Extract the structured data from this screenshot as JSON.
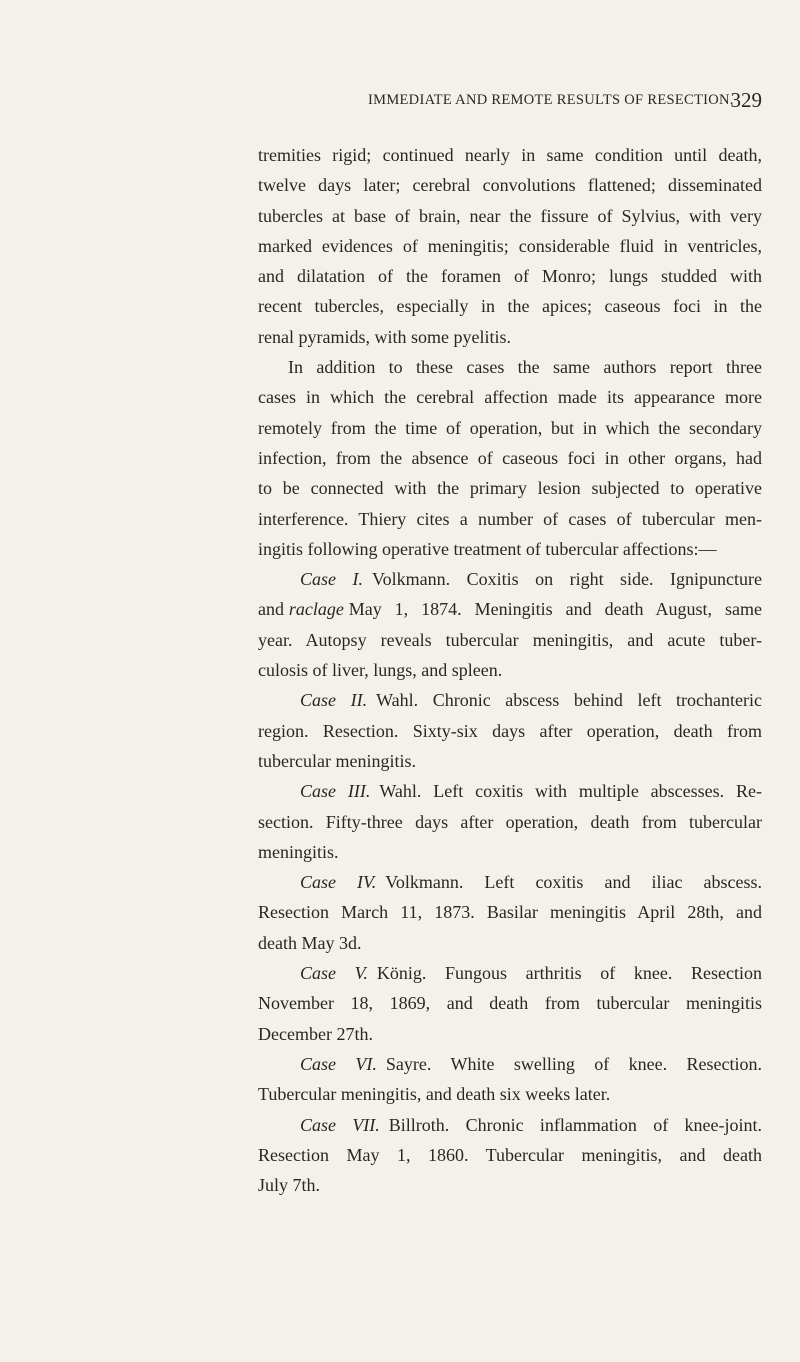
{
  "header": {
    "title": "IMMEDIATE AND REMOTE RESULTS OF RESECTION.",
    "page_number": "329"
  },
  "paragraphs": [
    {
      "lines": [
        "tremities rigid; continued nearly in same condition until death,",
        "twelve days later; cerebral convolutions flattened; disseminated",
        "tubercles at base of brain, near the fissure of Sylvius, with very",
        "marked evidences of meningitis; considerable fluid in ventricles,",
        "and dilatation of the foramen of Monro; lungs studded with",
        "recent tubercles, especially in the apices; caseous foci in the",
        "renal pyramids, with some pyelitis."
      ]
    },
    {
      "lines": [
        "In addition to these cases the same authors report three",
        "cases in which the cerebral affection made its appearance more",
        "remotely from the time of operation, but in which the secondary",
        "infection, from the absence of caseous foci in other organs, had",
        "to be connected with the primary lesion subjected to operative",
        "interference. Thiery cites a number of cases of tubercular men-",
        "ingitis following operative treatment of tubercular affections:—"
      ]
    }
  ],
  "cases": [
    {
      "label": "Case I.",
      "lines": [
        "Volkmann. Coxitis on right side. Ignipuncture",
        [
          "and",
          "raclage",
          "May 1, 1874. Meningitis and death August, same"
        ],
        "year. Autopsy reveals tubercular meningitis, and acute tuber-",
        "culosis of liver, lungs, and spleen."
      ]
    },
    {
      "label": "Case II.",
      "lines": [
        "Wahl. Chronic abscess behind left trochanteric",
        "region. Resection. Sixty-six days after operation, death from",
        "tubercular meningitis."
      ]
    },
    {
      "label": "Case III.",
      "lines": [
        "Wahl. Left coxitis with multiple abscesses. Re-",
        "section. Fifty-three days after operation, death from tubercular",
        "meningitis."
      ]
    },
    {
      "label": "Case IV.",
      "lines": [
        "Volkmann. Left coxitis and iliac abscess.",
        "Resection March 11, 1873. Basilar meningitis April 28th, and",
        "death May 3d."
      ]
    },
    {
      "label": "Case V.",
      "lines": [
        "König. Fungous arthritis of knee. Resection",
        "November 18, 1869, and death from tubercular meningitis",
        "December 27th."
      ]
    },
    {
      "label": "Case VI.",
      "lines": [
        "Sayre. White swelling of knee. Resection.",
        "Tubercular meningitis, and death six weeks later."
      ]
    },
    {
      "label": "Case VII.",
      "lines": [
        "Billroth. Chronic inflammation of knee-joint.",
        "Resection May 1, 1860. Tubercular meningitis, and death",
        "July 7th."
      ]
    }
  ]
}
